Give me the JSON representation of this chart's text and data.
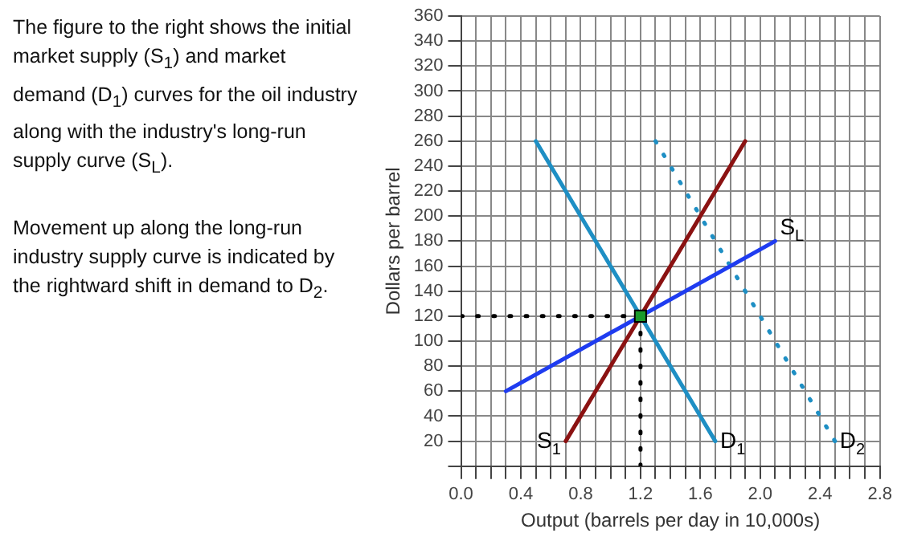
{
  "chart_data": {
    "type": "line",
    "xlabel": "Output (barrels per day in 10,000s)",
    "ylabel": "Dollars per barrel",
    "annotations": [
      "The figure to the right shows the initial market supply (S$_{1}$) and market demand (D$_{1}$) curves for the oil industry along with the  industry's long-run supply curve (S$_{L}$).",
      "Movement up along the long-run industry supply curve is indicated by the rightward shift in demand to D$_{2}$."
    ],
    "xlim": [
      0,
      2.8
    ],
    "ylim": [
      0,
      360
    ],
    "xticks": [
      {
        "value": 0,
        "label": "0.0"
      },
      {
        "value": 0.1,
        "label": null
      },
      {
        "value": 0.2,
        "label": null
      },
      {
        "value": 0.3,
        "label": null
      },
      {
        "value": 0.4,
        "label": "0.4"
      },
      {
        "value": 0.5,
        "label": null
      },
      {
        "value": 0.6,
        "label": null
      },
      {
        "value": 0.7,
        "label": null
      },
      {
        "value": 0.8,
        "label": "0.8"
      },
      {
        "value": 0.9,
        "label": null
      },
      {
        "value": 1,
        "label": null
      },
      {
        "value": 1.1,
        "label": null
      },
      {
        "value": 1.2,
        "label": "1.2"
      },
      {
        "value": 1.3,
        "label": null
      },
      {
        "value": 1.4,
        "label": null
      },
      {
        "value": 1.5,
        "label": null
      },
      {
        "value": 1.6,
        "label": "1.6"
      },
      {
        "value": 1.7,
        "label": null
      },
      {
        "value": 1.8,
        "label": null
      },
      {
        "value": 1.9,
        "label": null
      },
      {
        "value": 2,
        "label": "2.0"
      },
      {
        "value": 2.1,
        "label": null
      },
      {
        "value": 2.2,
        "label": null
      },
      {
        "value": 2.3,
        "label": null
      },
      {
        "value": 2.4,
        "label": "2.4"
      },
      {
        "value": 2.5,
        "label": null
      },
      {
        "value": 2.6,
        "label": null
      },
      {
        "value": 2.7,
        "label": null
      },
      {
        "value": 2.8,
        "label": "2.8"
      }
    ],
    "yticks": [
      {
        "value": 0,
        "label": null
      },
      20,
      40,
      60,
      80,
      100,
      120,
      140,
      160,
      180,
      200,
      220,
      240,
      260,
      280,
      300,
      320,
      340,
      360
    ],
    "grid": true,
    "legend": false,
    "marker": "none",
    "line_style": "solid",
    "series": [
      {
        "name": "D$_{1}$",
        "color": "#1e8fc4",
        "x": [
          0.5,
          1.7
        ],
        "values": [
          260,
          20
        ]
      },
      {
        "name": "S$_{1}$",
        "color": "#8b1212",
        "x": [
          1.9,
          0.7
        ],
        "values": [
          260,
          20
        ]
      },
      {
        "name": "S$_{L}$",
        "color": "#1f3cf0",
        "x": [
          0.3,
          2.1
        ],
        "values": [
          60,
          180
        ]
      },
      {
        "name": "D$_{2}$",
        "color": "#1e8fc4",
        "x": [
          1.3,
          2.5
        ],
        "values": [
          260,
          20
        ],
        "line_style": "dotted"
      },
      {
        "color": "#000000",
        "x": [
          0,
          1.2
        ],
        "values": [
          120,
          120
        ],
        "line_style": "dotted"
      },
      {
        "color": "#000000",
        "x": [
          1.2,
          1.2
        ],
        "values": [
          0,
          120
        ],
        "line_style": "dotted"
      },
      {
        "type": "scatter",
        "color": "#1a9a2a",
        "x": [
          1.2
        ],
        "values": [
          120
        ],
        "marker": "square"
      }
    ]
  }
}
